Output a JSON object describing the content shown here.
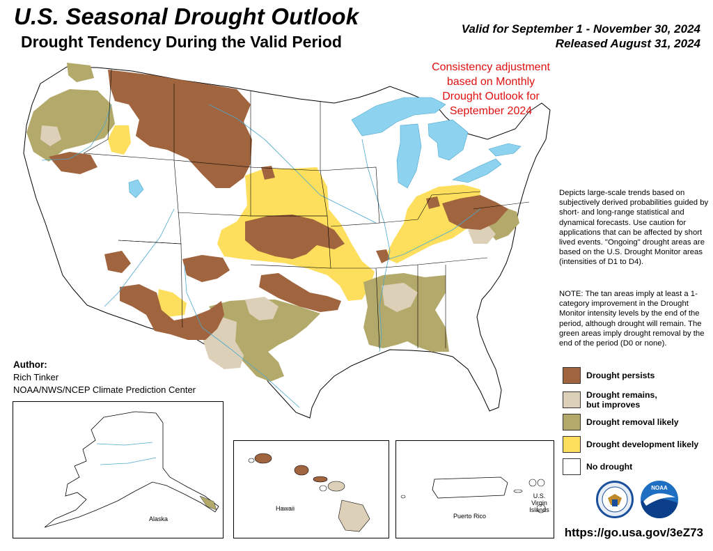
{
  "header": {
    "title": "U.S. Seasonal Drought Outlook",
    "subtitle": "Drought Tendency During the Valid Period",
    "valid_line": "Valid for September 1 - November 30, 2024",
    "released_line": "Released August 31, 2024"
  },
  "adjustment_note": [
    "Consistency adjustment",
    "based on Monthly",
    "Drought Outlook for",
    "September 2024"
  ],
  "description": "Depicts large-scale trends based on subjectively derived probabilities guided by short- and long-range statistical and dynamical forecasts. Use caution for applications that can be affected by short lived events. \"Ongoing\" drought areas are based on the U.S. Drought Monitor areas (intensities of D1 to D4).",
  "note": "NOTE: The tan areas imply at least a 1-category improvement in the Drought Monitor intensity levels by the end of the period, although drought will remain. The green areas imply drought removal by the end of the period (D0 or none).",
  "legend": [
    {
      "label": "Drought persists",
      "color": "#a0643f"
    },
    {
      "label": "Drought remains,\nbut improves",
      "color": "#ddd0b8"
    },
    {
      "label": "Drought removal likely",
      "color": "#b3a96a"
    },
    {
      "label": "Drought development likely",
      "color": "#fddf5d"
    },
    {
      "label": "No drought",
      "color": "#ffffff"
    }
  ],
  "author": {
    "heading": "Author:",
    "name": "Rich Tinker",
    "org": "NOAA/NWS/NCEP Climate Prediction Center"
  },
  "insets": {
    "alaska": "Alaska",
    "hawaii": "Hawaii",
    "puerto_rico": "Puerto Rico",
    "virgin_islands": "U.S. Virgin\nIslands"
  },
  "logos": {
    "doc_seal_text": "DEPARTMENT OF COMMERCE",
    "noaa_text": "NOAA"
  },
  "url": "https://go.usa.gov/3eZ73",
  "colors": {
    "persists": "#a0643f",
    "improves": "#ddd0b8",
    "removal": "#b3a96a",
    "development": "#fddf5d",
    "water": "#8dd3ef",
    "adjust_text": "#e01010"
  }
}
